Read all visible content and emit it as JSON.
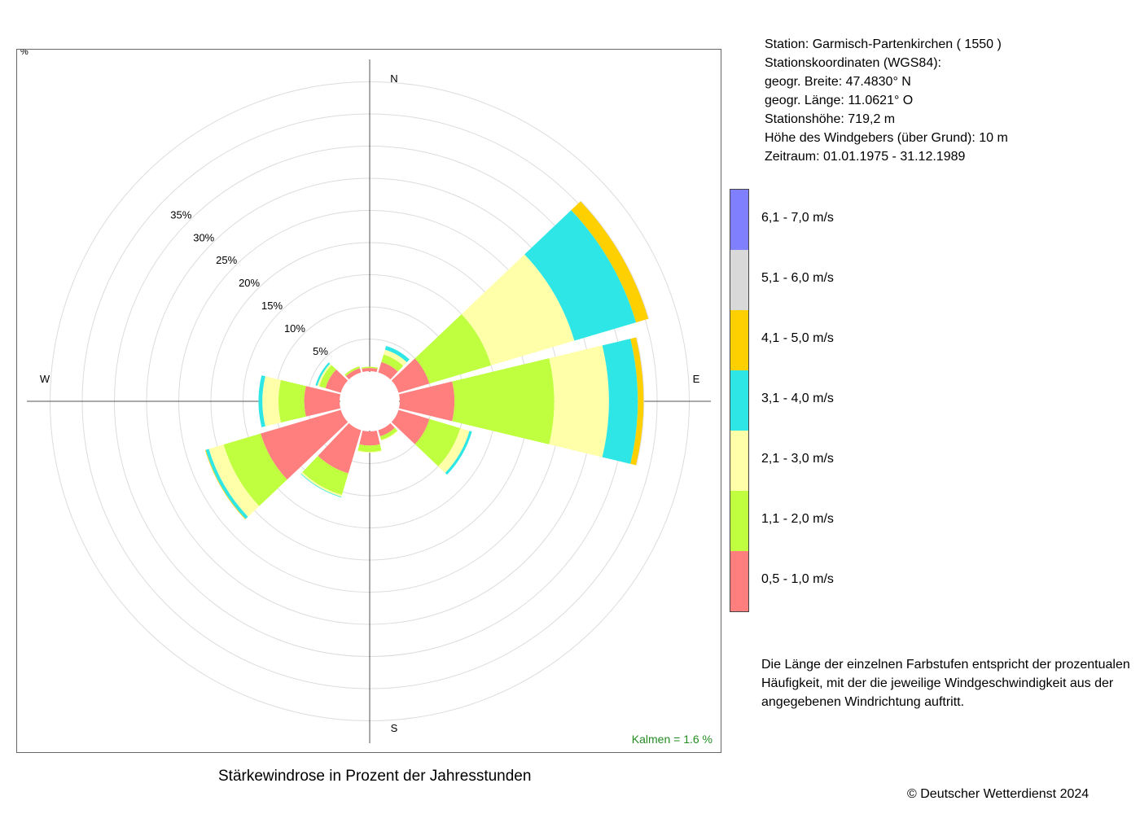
{
  "station": {
    "line1": "Station:  Garmisch-Partenkirchen  ( 1550 )",
    "line2": "Stationskoordinaten (WGS84):",
    "line3": "geogr. Breite: 47.4830° N",
    "line4": "geogr. Länge: 11.0621° O",
    "line5": "Stationshöhe: 719,2 m",
    "line6": "Höhe des Windgebers (über Grund): 10 m",
    "line7": "Zeitraum: 01.01.1975 - 31.12.1989"
  },
  "note": "Die Länge der einzelnen Farbstufen entspricht der prozentualen Häufigkeit, mit der die jeweilige Windgeschwindigkeit aus der angegebenen Windrichtung auftritt.",
  "copyright": "© Deutscher Wetterdienst  2024",
  "chart_data": {
    "type": "wind-rose",
    "title": "Stärkewindrose in Prozent der Jahresstunden",
    "radial_unit": "%",
    "radial_ticks": [
      "5%",
      "10%",
      "15%",
      "20%",
      "25%",
      "30%",
      "35%"
    ],
    "radial_tick_values": [
      5,
      10,
      15,
      20,
      25,
      30,
      35
    ],
    "max_ring": 45,
    "calm": "Kalmen  =  1.6 %",
    "compass": {
      "n": "N",
      "e": "E",
      "s": "S",
      "w": "W"
    },
    "direction_step_deg": 30,
    "directions_deg": [
      0,
      30,
      60,
      90,
      120,
      150,
      180,
      210,
      240,
      270,
      300,
      330
    ],
    "speed_classes": [
      {
        "label": "0,5 - 1,0 m/s",
        "color": "#ff7f7f"
      },
      {
        "label": "1,1 - 2,0 m/s",
        "color": "#bfff3f"
      },
      {
        "label": "2,1 - 3,0 m/s",
        "color": "#ffffaa"
      },
      {
        "label": "3,1 - 4,0 m/s",
        "color": "#2ee6e6"
      },
      {
        "label": "4,1 - 5,0 m/s",
        "color": "#ffd000"
      },
      {
        "label": "5,1 - 6,0 m/s",
        "color": "#d9d9d9"
      },
      {
        "label": "6,1 - 7,0 m/s",
        "color": "#7f7fff"
      }
    ],
    "series": [
      {
        "direction": 0,
        "values": [
          0.5,
          0.2,
          0.0,
          0.0,
          0.0,
          0.0,
          0.0
        ]
      },
      {
        "direction": 30,
        "values": [
          1.7,
          1.2,
          0.8,
          0.6,
          0.0,
          0.0,
          0.0
        ]
      },
      {
        "direction": 60,
        "values": [
          5.0,
          10.0,
          13.5,
          10.0,
          2.0,
          0.1,
          0.0
        ]
      },
      {
        "direction": 90,
        "values": [
          8.5,
          15.5,
          8.5,
          4.5,
          0.9,
          0.1,
          0.0
        ]
      },
      {
        "direction": 120,
        "values": [
          5.0,
          5.0,
          1.5,
          0.4,
          0.0,
          0.0,
          0.0
        ]
      },
      {
        "direction": 150,
        "values": [
          1.0,
          0.6,
          0.1,
          0.0,
          0.0,
          0.0,
          0.0
        ]
      },
      {
        "direction": 180,
        "values": [
          2.2,
          1.0,
          0.1,
          0.0,
          0.0,
          0.0,
          0.0
        ]
      },
      {
        "direction": 210,
        "values": [
          7.0,
          3.5,
          0.3,
          0.1,
          0.0,
          0.0,
          0.0
        ]
      },
      {
        "direction": 240,
        "values": [
          13.0,
          6.0,
          2.4,
          0.5,
          0.1,
          0.0,
          0.0
        ]
      },
      {
        "direction": 270,
        "values": [
          5.5,
          4.0,
          2.5,
          0.6,
          0.0,
          0.0,
          0.0
        ]
      },
      {
        "direction": 300,
        "values": [
          2.5,
          1.0,
          0.3,
          0.3,
          0.0,
          0.0,
          0.0
        ]
      },
      {
        "direction": 330,
        "values": [
          0.7,
          0.3,
          0.0,
          0.0,
          0.0,
          0.0,
          0.0
        ]
      }
    ]
  }
}
